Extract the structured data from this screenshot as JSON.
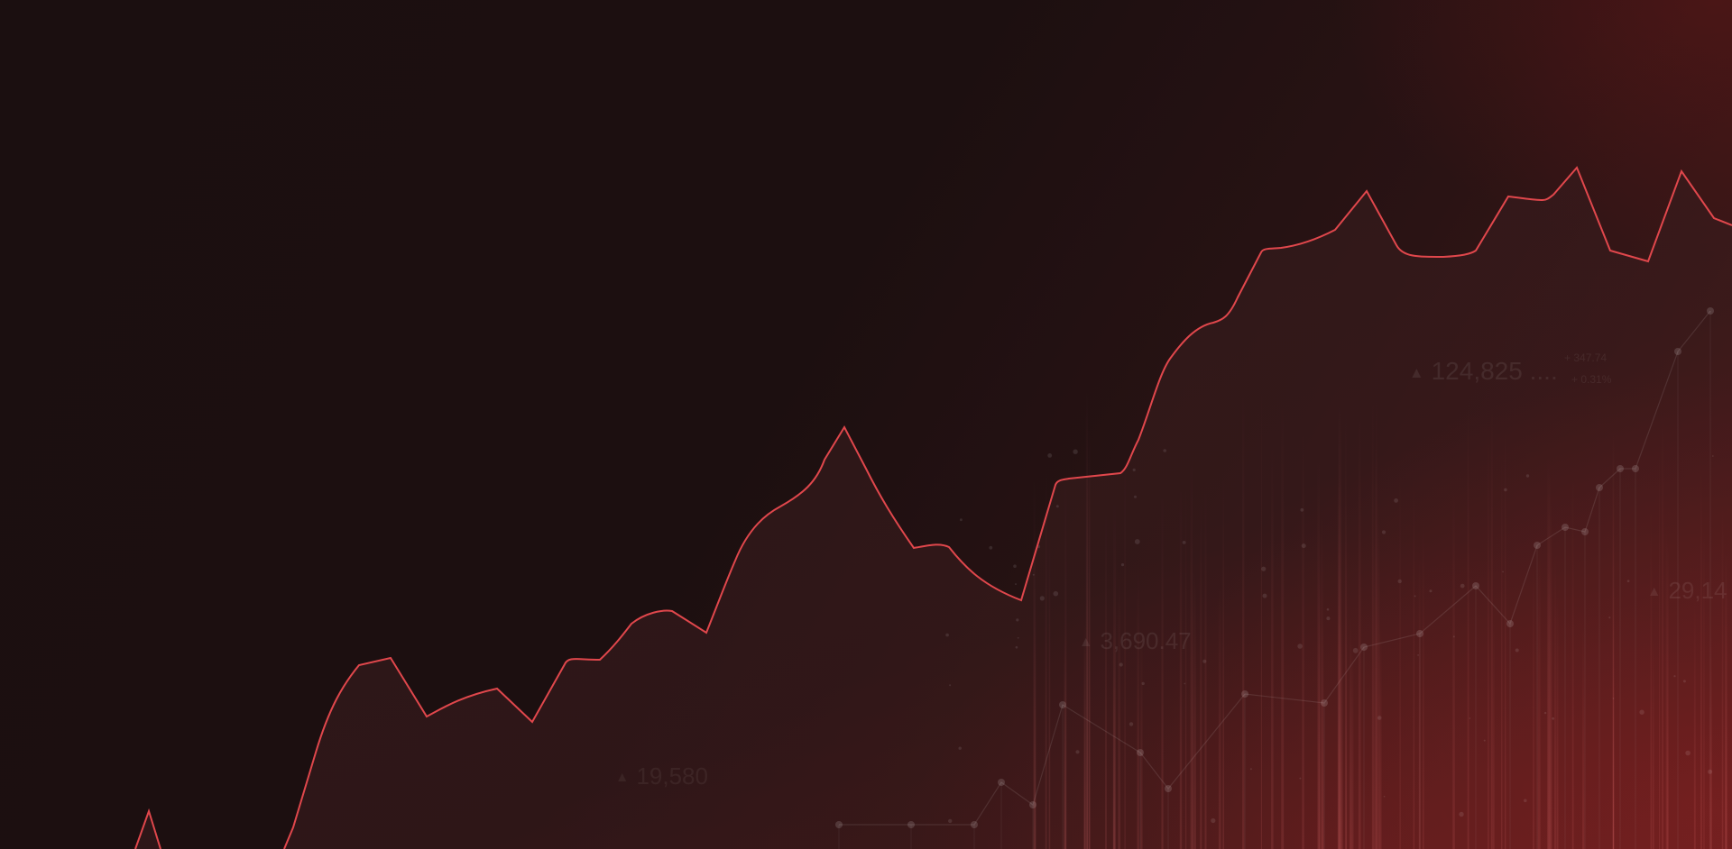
{
  "colors": {
    "line": "#e0474c",
    "background": "#1b0f10",
    "glow": "#8a2020"
  },
  "overlay_labels": [
    {
      "id": "label-124825",
      "text": "124,825 ...."
    },
    {
      "id": "label-3690",
      "text": "3,690.47"
    },
    {
      "id": "label-19580",
      "text": "19,580"
    },
    {
      "id": "label-2914",
      "text": "29,14"
    }
  ],
  "overlay_small": [
    {
      "id": "small-change",
      "text": "+ 347.74"
    },
    {
      "id": "small-pct",
      "text": "+ 0.31%"
    }
  ]
}
